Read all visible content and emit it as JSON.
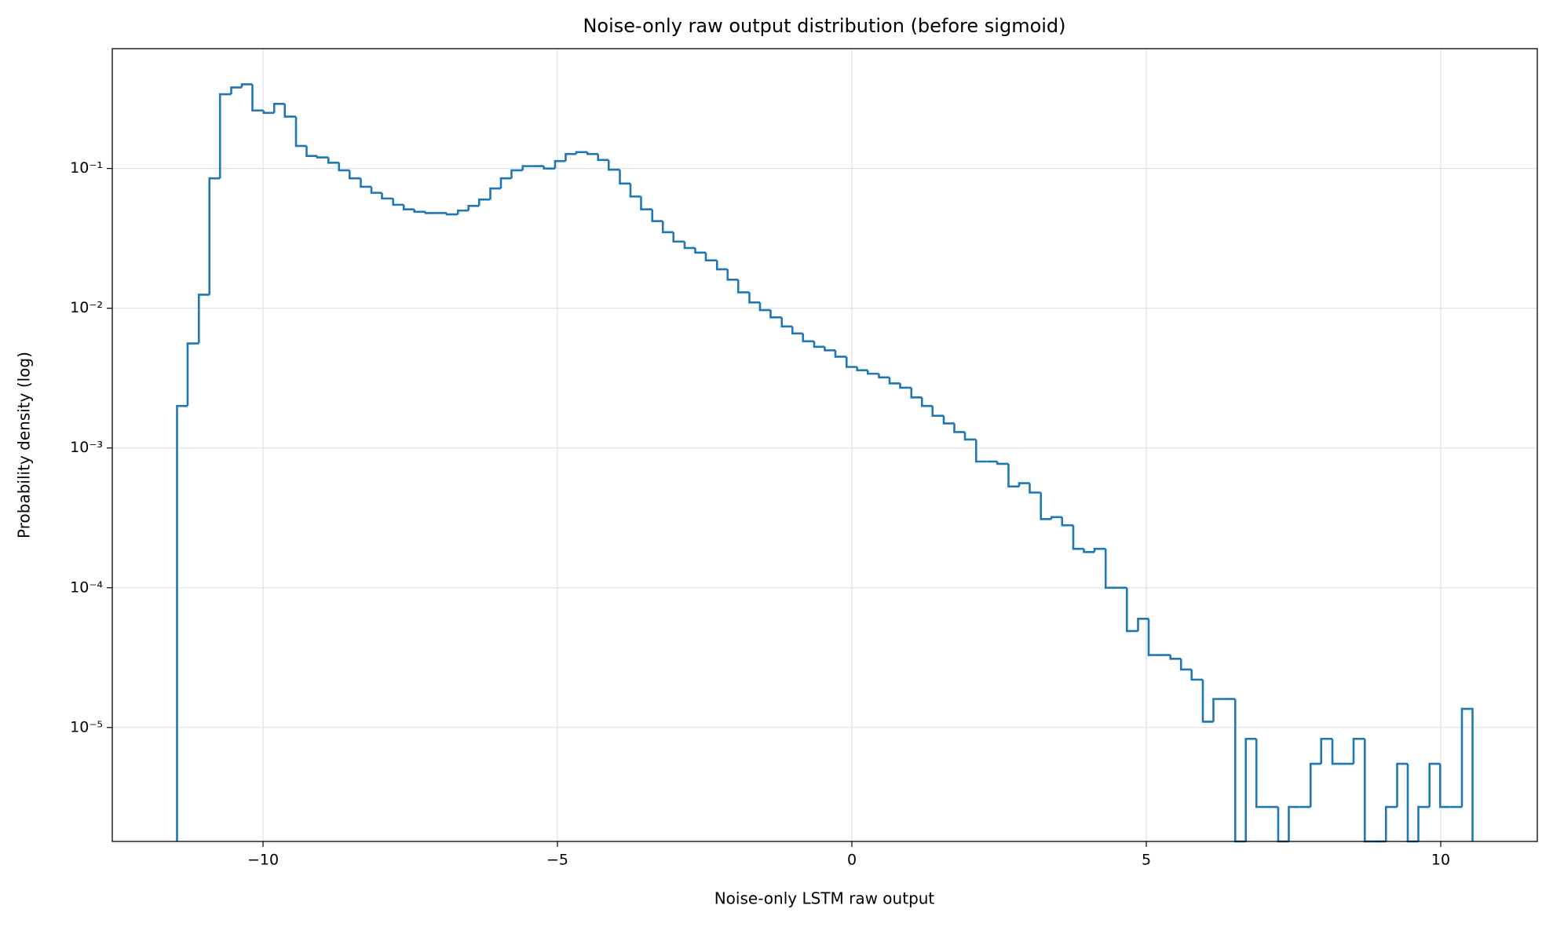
{
  "chart_data": {
    "type": "histogram",
    "title": "Noise-only raw output distribution (before sigmoid)",
    "x_label": "Noise-only LSTM raw output",
    "y_label": "Probability density (log)",
    "y_scale": "log",
    "grid": true,
    "color": "#1f77b4",
    "xlim": [
      -12.56,
      11.64
    ],
    "ylim": [
      1.53e-06,
      0.72
    ],
    "xticks": [
      {
        "value": -10,
        "label": "−10"
      },
      {
        "value": -5,
        "label": "−5"
      },
      0,
      5,
      10
    ],
    "yticks": [
      {
        "value": 1e-05,
        "label": "10⁻⁵"
      },
      {
        "value": 0.0001,
        "label": "10⁻⁴"
      },
      {
        "value": 0.001,
        "label": "10⁻³"
      },
      {
        "value": 0.01,
        "label": "10⁻²"
      },
      {
        "value": 0.1,
        "label": "10⁻¹"
      }
    ],
    "bins": [
      -11.46,
      -11.28,
      -11.09,
      -10.91,
      -10.73,
      -10.54,
      -10.36,
      -10.18,
      -9.99,
      -9.81,
      -9.63,
      -9.44,
      -9.26,
      -9.08,
      -8.89,
      -8.71,
      -8.53,
      -8.34,
      -8.16,
      -7.98,
      -7.79,
      -7.61,
      -7.43,
      -7.24,
      -7.06,
      -6.88,
      -6.69,
      -6.51,
      -6.33,
      -6.14,
      -5.96,
      -5.78,
      -5.59,
      -5.41,
      -5.23,
      -5.04,
      -4.86,
      -4.68,
      -4.49,
      -4.31,
      -4.13,
      -3.94,
      -3.76,
      -3.58,
      -3.39,
      -3.21,
      -3.03,
      -2.84,
      -2.66,
      -2.48,
      -2.29,
      -2.11,
      -1.93,
      -1.74,
      -1.56,
      -1.38,
      -1.19,
      -1.01,
      -0.83,
      -0.64,
      -0.46,
      -0.28,
      -0.09,
      0.09,
      0.27,
      0.46,
      0.64,
      0.82,
      1.01,
      1.19,
      1.37,
      1.56,
      1.74,
      1.92,
      2.11,
      2.29,
      2.47,
      2.66,
      2.84,
      3.02,
      3.21,
      3.39,
      3.57,
      3.76,
      3.94,
      4.12,
      4.31,
      4.49,
      4.67,
      4.86,
      5.04,
      5.22,
      5.41,
      5.59,
      5.77,
      5.96,
      6.14,
      6.32,
      6.51,
      6.69,
      6.87,
      7.06,
      7.24,
      7.42,
      7.61,
      7.79,
      7.97,
      8.16,
      8.34,
      8.52,
      8.71,
      8.89,
      9.07,
      9.26,
      9.44,
      9.62,
      9.81,
      9.99,
      10.17,
      10.36,
      10.54
    ],
    "values": [
      0.002,
      0.0056,
      0.0125,
      0.085,
      0.34,
      0.38,
      0.4,
      0.26,
      0.25,
      0.29,
      0.235,
      0.145,
      0.123,
      0.12,
      0.11,
      0.097,
      0.085,
      0.074,
      0.067,
      0.061,
      0.055,
      0.051,
      0.049,
      0.048,
      0.048,
      0.047,
      0.05,
      0.054,
      0.06,
      0.072,
      0.085,
      0.097,
      0.104,
      0.104,
      0.1,
      0.113,
      0.127,
      0.131,
      0.127,
      0.115,
      0.098,
      0.078,
      0.063,
      0.051,
      0.042,
      0.035,
      0.03,
      0.027,
      0.025,
      0.022,
      0.019,
      0.016,
      0.013,
      0.011,
      0.0097,
      0.0086,
      0.0074,
      0.0066,
      0.0058,
      0.0053,
      0.005,
      0.0045,
      0.0038,
      0.0036,
      0.0034,
      0.0032,
      0.0029,
      0.0027,
      0.0023,
      0.002,
      0.0017,
      0.0015,
      0.0013,
      0.00115,
      0.0008,
      0.0008,
      0.00077,
      0.00053,
      0.00056,
      0.00048,
      0.00031,
      0.00032,
      0.00028,
      0.00019,
      0.00018,
      0.00019,
      0.0001,
      0.0001,
      4.9e-05,
      6e-05,
      3.3e-05,
      3.3e-05,
      3.1e-05,
      2.6e-05,
      2.2e-05,
      1.1e-05,
      1.6e-05,
      1.6e-05,
      0,
      8.3e-06,
      2.7e-06,
      2.7e-06,
      0,
      2.7e-06,
      2.7e-06,
      5.5e-06,
      8.3e-06,
      5.5e-06,
      5.5e-06,
      8.3e-06,
      0,
      0,
      2.7e-06,
      5.5e-06,
      0,
      2.7e-06,
      5.5e-06,
      2.7e-06,
      2.7e-06,
      1.36e-05
    ]
  }
}
